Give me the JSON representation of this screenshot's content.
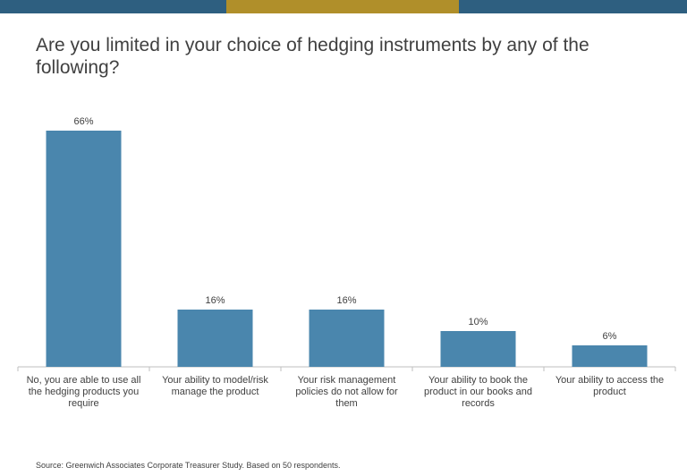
{
  "header_bar": {
    "colors": [
      "#2e5f80",
      "#b08f2a",
      "#2e5f80"
    ]
  },
  "title": "Are you limited in your choice of hedging instruments by any of the following?",
  "source": "Source: Greenwich Associates Corporate Treasurer Study. Based on 50 respondents.",
  "colors": {
    "bar": "#4a86ad",
    "axis": "#bfbfbf",
    "text": "#404040"
  },
  "chart_data": {
    "type": "bar",
    "title": "Are you limited in your choice of hedging instruments by any of the following?",
    "categories": [
      "No, you are able to use all the hedging products you require",
      "Your ability to model/risk manage the product",
      "Your risk management policies do not allow for them",
      "Your ability to book the product in our books and records",
      "Your ability to access the product"
    ],
    "category_lines": [
      [
        "No, you are able to use all",
        "the hedging products you",
        "require"
      ],
      [
        "Your ability to model/risk",
        "manage the product"
      ],
      [
        "Your risk management",
        "policies do not allow for",
        "them"
      ],
      [
        "Your ability to book the",
        "product in our books and",
        "records"
      ],
      [
        "Your ability to access the",
        "product"
      ]
    ],
    "values": [
      66,
      16,
      16,
      10,
      6
    ],
    "value_labels": [
      "66%",
      "16%",
      "16%",
      "10%",
      "6%"
    ],
    "ylim": [
      0,
      75
    ],
    "xlabel": "",
    "ylabel": "",
    "grid": false,
    "legend": "none"
  }
}
